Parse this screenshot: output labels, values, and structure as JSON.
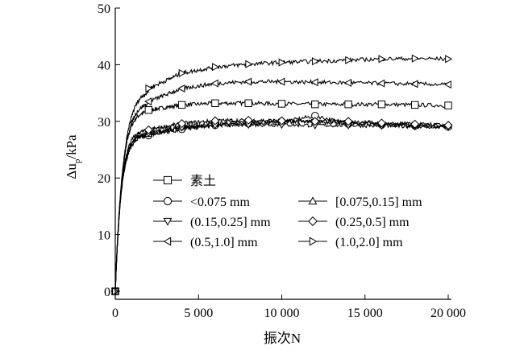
{
  "chart_data": {
    "type": "line",
    "xlabel": "振次N",
    "ylabel_main": "Δu",
    "ylabel_sub": "p",
    "ylabel_unit": "/kPa",
    "xlim": [
      0,
      20000
    ],
    "ylim": [
      0,
      50
    ],
    "xticks": [
      0,
      5000,
      10000,
      15000,
      20000
    ],
    "xtick_labels": [
      "0",
      "5 000",
      "10 000",
      "15 000",
      "20 000"
    ],
    "yticks": [
      0,
      10,
      20,
      30,
      40,
      50
    ],
    "ytick_labels": [
      "0",
      "10",
      "20",
      "30",
      "40",
      "50"
    ],
    "grid": false,
    "legend_position": "bottom-left",
    "series": [
      {
        "name": "素土",
        "marker": "square",
        "final": 32.8,
        "knee": 900,
        "x": [
          0,
          2000,
          4000,
          6000,
          8000,
          10000,
          12000,
          14000,
          16000,
          18000,
          20000
        ],
        "y": [
          0,
          32.0,
          32.9,
          33.2,
          33.2,
          33.1,
          33.0,
          33.0,
          33.0,
          32.9,
          32.8
        ]
      },
      {
        "name": "<0.075 mm",
        "marker": "circle",
        "final": 29.0,
        "knee": 800,
        "x": [
          0,
          2000,
          4000,
          6000,
          8000,
          10000,
          12000,
          14000,
          16000,
          18000,
          20000
        ],
        "y": [
          0,
          27.5,
          28.6,
          29.3,
          29.6,
          29.8,
          31.0,
          29.5,
          29.4,
          29.2,
          29.0
        ]
      },
      {
        "name": "[0.075,0.15] mm",
        "marker": "triangle-up",
        "final": 29.3,
        "knee": 800,
        "x": [
          0,
          2000,
          4000,
          6000,
          8000,
          10000,
          12000,
          14000,
          16000,
          18000,
          20000
        ],
        "y": [
          0,
          27.8,
          29.0,
          29.6,
          29.9,
          30.0,
          29.9,
          29.8,
          29.6,
          29.5,
          29.3
        ]
      },
      {
        "name": "(0.15,0.25] mm",
        "marker": "triangle-down",
        "final": 29.0,
        "knee": 800,
        "x": [
          0,
          2000,
          4000,
          6000,
          8000,
          10000,
          12000,
          14000,
          16000,
          18000,
          20000
        ],
        "y": [
          0,
          27.9,
          28.9,
          29.3,
          29.4,
          29.4,
          29.3,
          29.3,
          29.2,
          29.1,
          29.0
        ]
      },
      {
        "name": "(0.25,0.5] mm",
        "marker": "diamond",
        "final": 29.3,
        "knee": 800,
        "x": [
          0,
          2000,
          4000,
          6000,
          8000,
          10000,
          12000,
          14000,
          16000,
          18000,
          20000
        ],
        "y": [
          0,
          28.5,
          29.6,
          30.1,
          30.2,
          30.1,
          30.0,
          30.0,
          29.7,
          29.5,
          29.3
        ]
      },
      {
        "name": "(0.5,1.0] mm",
        "marker": "triangle-left",
        "final": 36.5,
        "knee": 1000,
        "x": [
          0,
          2000,
          4000,
          6000,
          8000,
          10000,
          12000,
          14000,
          16000,
          18000,
          20000
        ],
        "y": [
          0,
          33.5,
          35.8,
          36.7,
          37.0,
          37.0,
          36.9,
          36.8,
          36.7,
          36.6,
          36.5
        ]
      },
      {
        "name": "(1.0,2.0] mm",
        "marker": "triangle-right",
        "final": 41.0,
        "knee": 1100,
        "x": [
          0,
          2000,
          4000,
          6000,
          8000,
          10000,
          12000,
          14000,
          16000,
          18000,
          20000
        ],
        "y": [
          0,
          35.8,
          38.5,
          39.6,
          40.1,
          40.4,
          40.6,
          40.8,
          41.0,
          41.1,
          41.0
        ]
      }
    ]
  }
}
